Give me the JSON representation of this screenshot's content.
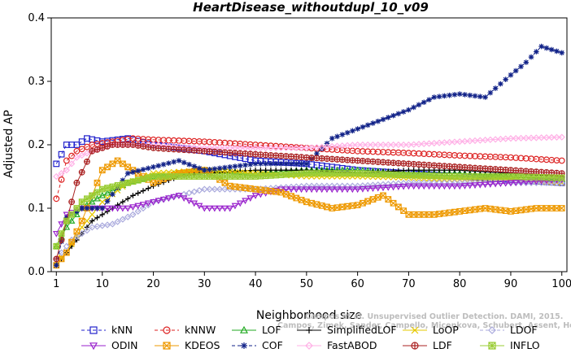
{
  "chart_data": {
    "type": "line",
    "title": "HeartDisease_withoutdupl_10_v09",
    "xlabel": "Neighborhood size",
    "ylabel": "Adjusted AP",
    "xlim": [
      0,
      101
    ],
    "ylim": [
      0.0,
      0.4
    ],
    "xticks": [
      1,
      10,
      20,
      30,
      40,
      50,
      60,
      70,
      80,
      90,
      100
    ],
    "yticks": [
      0.0,
      0.1,
      0.2,
      0.3,
      0.4
    ],
    "ytick_labels": [
      "0.0",
      "0.1",
      "0.2",
      "0.3",
      "0.4"
    ],
    "watermark": [
      "Campos et al. Unsupervised Outlier Detection. DAMI, 2015.",
      "Campos, Zimek, Sander, Campello, Micenkova, Schubert, Assent, Houle"
    ],
    "legend_position": "bottom",
    "series": [
      {
        "name": "kNN",
        "color": "#2222cc",
        "marker": "square",
        "dash": "4,3",
        "points": [
          [
            1,
            0.17
          ],
          [
            3,
            0.2
          ],
          [
            5,
            0.2
          ],
          [
            7,
            0.21
          ],
          [
            10,
            0.205
          ],
          [
            15,
            0.21
          ],
          [
            20,
            0.2
          ],
          [
            30,
            0.19
          ],
          [
            40,
            0.175
          ],
          [
            50,
            0.17
          ],
          [
            60,
            0.16
          ],
          [
            70,
            0.155
          ],
          [
            80,
            0.15
          ],
          [
            90,
            0.145
          ],
          [
            100,
            0.14
          ]
        ]
      },
      {
        "name": "kNNW",
        "color": "#dd2222",
        "marker": "circle",
        "dash": "4,3",
        "points": [
          [
            1,
            0.115
          ],
          [
            3,
            0.175
          ],
          [
            5,
            0.19
          ],
          [
            8,
            0.2
          ],
          [
            12,
            0.205
          ],
          [
            16,
            0.21
          ],
          [
            20,
            0.208
          ],
          [
            30,
            0.205
          ],
          [
            40,
            0.2
          ],
          [
            50,
            0.195
          ],
          [
            60,
            0.19
          ],
          [
            70,
            0.187
          ],
          [
            80,
            0.183
          ],
          [
            90,
            0.18
          ],
          [
            100,
            0.175
          ]
        ]
      },
      {
        "name": "LOF",
        "color": "#22aa22",
        "marker": "triangle-up",
        "dash": "",
        "points": [
          [
            1,
            0.04
          ],
          [
            3,
            0.07
          ],
          [
            6,
            0.1
          ],
          [
            10,
            0.12
          ],
          [
            15,
            0.14
          ],
          [
            20,
            0.15
          ],
          [
            30,
            0.16
          ],
          [
            40,
            0.155
          ],
          [
            50,
            0.16
          ],
          [
            60,
            0.16
          ],
          [
            70,
            0.155
          ],
          [
            80,
            0.155
          ],
          [
            90,
            0.15
          ],
          [
            100,
            0.145
          ]
        ]
      },
      {
        "name": "SimplifiedLOF",
        "color": "#000000",
        "marker": "plus",
        "dash": "",
        "points": [
          [
            1,
            0.01
          ],
          [
            3,
            0.03
          ],
          [
            5,
            0.05
          ],
          [
            8,
            0.08
          ],
          [
            12,
            0.1
          ],
          [
            16,
            0.12
          ],
          [
            20,
            0.135
          ],
          [
            25,
            0.15
          ],
          [
            30,
            0.155
          ],
          [
            40,
            0.16
          ],
          [
            50,
            0.16
          ],
          [
            60,
            0.155
          ],
          [
            70,
            0.16
          ],
          [
            80,
            0.16
          ],
          [
            90,
            0.155
          ],
          [
            100,
            0.15
          ]
        ]
      },
      {
        "name": "LoOP",
        "color": "#e6c800",
        "marker": "x",
        "dash": "",
        "points": [
          [
            1,
            0.015
          ],
          [
            3,
            0.03
          ],
          [
            6,
            0.07
          ],
          [
            10,
            0.11
          ],
          [
            15,
            0.14
          ],
          [
            20,
            0.155
          ],
          [
            30,
            0.16
          ],
          [
            40,
            0.155
          ],
          [
            50,
            0.15
          ],
          [
            60,
            0.15
          ],
          [
            70,
            0.148
          ],
          [
            80,
            0.145
          ],
          [
            90,
            0.145
          ],
          [
            100,
            0.14
          ]
        ]
      },
      {
        "name": "LDOF",
        "color": "#aaaadd",
        "marker": "diamond",
        "dash": "4,3",
        "points": [
          [
            1,
            0.02
          ],
          [
            4,
            0.05
          ],
          [
            8,
            0.07
          ],
          [
            12,
            0.075
          ],
          [
            16,
            0.09
          ],
          [
            20,
            0.11
          ],
          [
            30,
            0.13
          ],
          [
            40,
            0.13
          ],
          [
            50,
            0.135
          ],
          [
            60,
            0.135
          ],
          [
            70,
            0.14
          ],
          [
            80,
            0.14
          ],
          [
            90,
            0.14
          ],
          [
            100,
            0.14
          ]
        ]
      },
      {
        "name": "ODIN",
        "color": "#9922cc",
        "marker": "triangle-down",
        "dash": "",
        "points": [
          [
            1,
            0.06
          ],
          [
            3,
            0.09
          ],
          [
            6,
            0.1
          ],
          [
            10,
            0.1
          ],
          [
            15,
            0.1
          ],
          [
            20,
            0.11
          ],
          [
            25,
            0.12
          ],
          [
            30,
            0.1
          ],
          [
            35,
            0.1
          ],
          [
            40,
            0.12
          ],
          [
            45,
            0.13
          ],
          [
            50,
            0.13
          ],
          [
            60,
            0.13
          ],
          [
            70,
            0.135
          ],
          [
            80,
            0.135
          ],
          [
            90,
            0.14
          ],
          [
            100,
            0.145
          ]
        ]
      },
      {
        "name": "KDEOS",
        "color": "#ee9900",
        "marker": "square-x",
        "dash": "",
        "points": [
          [
            1,
            0.01
          ],
          [
            3,
            0.03
          ],
          [
            6,
            0.08
          ],
          [
            10,
            0.16
          ],
          [
            13,
            0.175
          ],
          [
            16,
            0.16
          ],
          [
            20,
            0.14
          ],
          [
            25,
            0.155
          ],
          [
            30,
            0.16
          ],
          [
            35,
            0.135
          ],
          [
            40,
            0.13
          ],
          [
            45,
            0.125
          ],
          [
            50,
            0.11
          ],
          [
            55,
            0.1
          ],
          [
            60,
            0.105
          ],
          [
            65,
            0.12
          ],
          [
            70,
            0.09
          ],
          [
            75,
            0.09
          ],
          [
            80,
            0.095
          ],
          [
            85,
            0.1
          ],
          [
            90,
            0.095
          ],
          [
            95,
            0.1
          ],
          [
            100,
            0.1
          ]
        ]
      },
      {
        "name": "COF",
        "color": "#112288",
        "marker": "star",
        "dash": "4,3",
        "points": [
          [
            1,
            0.01
          ],
          [
            3,
            0.085
          ],
          [
            6,
            0.1
          ],
          [
            10,
            0.1
          ],
          [
            15,
            0.155
          ],
          [
            20,
            0.165
          ],
          [
            25,
            0.175
          ],
          [
            30,
            0.16
          ],
          [
            35,
            0.165
          ],
          [
            40,
            0.17
          ],
          [
            45,
            0.17
          ],
          [
            50,
            0.17
          ],
          [
            55,
            0.21
          ],
          [
            60,
            0.225
          ],
          [
            65,
            0.24
          ],
          [
            70,
            0.255
          ],
          [
            75,
            0.275
          ],
          [
            80,
            0.28
          ],
          [
            85,
            0.275
          ],
          [
            90,
            0.31
          ],
          [
            93,
            0.33
          ],
          [
            96,
            0.355
          ],
          [
            100,
            0.345
          ]
        ]
      },
      {
        "name": "FastABOD",
        "color": "#ffb0e6",
        "marker": "diamond",
        "dash": "",
        "points": [
          [
            1,
            0.15
          ],
          [
            3,
            0.16
          ],
          [
            5,
            0.18
          ],
          [
            8,
            0.19
          ],
          [
            12,
            0.2
          ],
          [
            20,
            0.2
          ],
          [
            30,
            0.195
          ],
          [
            40,
            0.195
          ],
          [
            50,
            0.195
          ],
          [
            60,
            0.2
          ],
          [
            70,
            0.2
          ],
          [
            80,
            0.205
          ],
          [
            90,
            0.21
          ],
          [
            100,
            0.212
          ]
        ]
      },
      {
        "name": "LDF",
        "color": "#aa2222",
        "marker": "circle-plus",
        "dash": "",
        "points": [
          [
            1,
            0.02
          ],
          [
            3,
            0.08
          ],
          [
            5,
            0.14
          ],
          [
            8,
            0.19
          ],
          [
            12,
            0.2
          ],
          [
            16,
            0.2
          ],
          [
            20,
            0.195
          ],
          [
            30,
            0.19
          ],
          [
            40,
            0.185
          ],
          [
            50,
            0.18
          ],
          [
            60,
            0.175
          ],
          [
            70,
            0.17
          ],
          [
            80,
            0.165
          ],
          [
            90,
            0.16
          ],
          [
            100,
            0.155
          ]
        ]
      },
      {
        "name": "INFLO",
        "color": "#99cc33",
        "marker": "square-cross",
        "dash": "",
        "points": [
          [
            1,
            0.04
          ],
          [
            3,
            0.08
          ],
          [
            6,
            0.11
          ],
          [
            10,
            0.13
          ],
          [
            15,
            0.14
          ],
          [
            20,
            0.15
          ],
          [
            30,
            0.15
          ],
          [
            40,
            0.15
          ],
          [
            50,
            0.155
          ],
          [
            60,
            0.155
          ],
          [
            70,
            0.152
          ],
          [
            80,
            0.15
          ],
          [
            90,
            0.15
          ],
          [
            100,
            0.148
          ]
        ]
      }
    ]
  }
}
